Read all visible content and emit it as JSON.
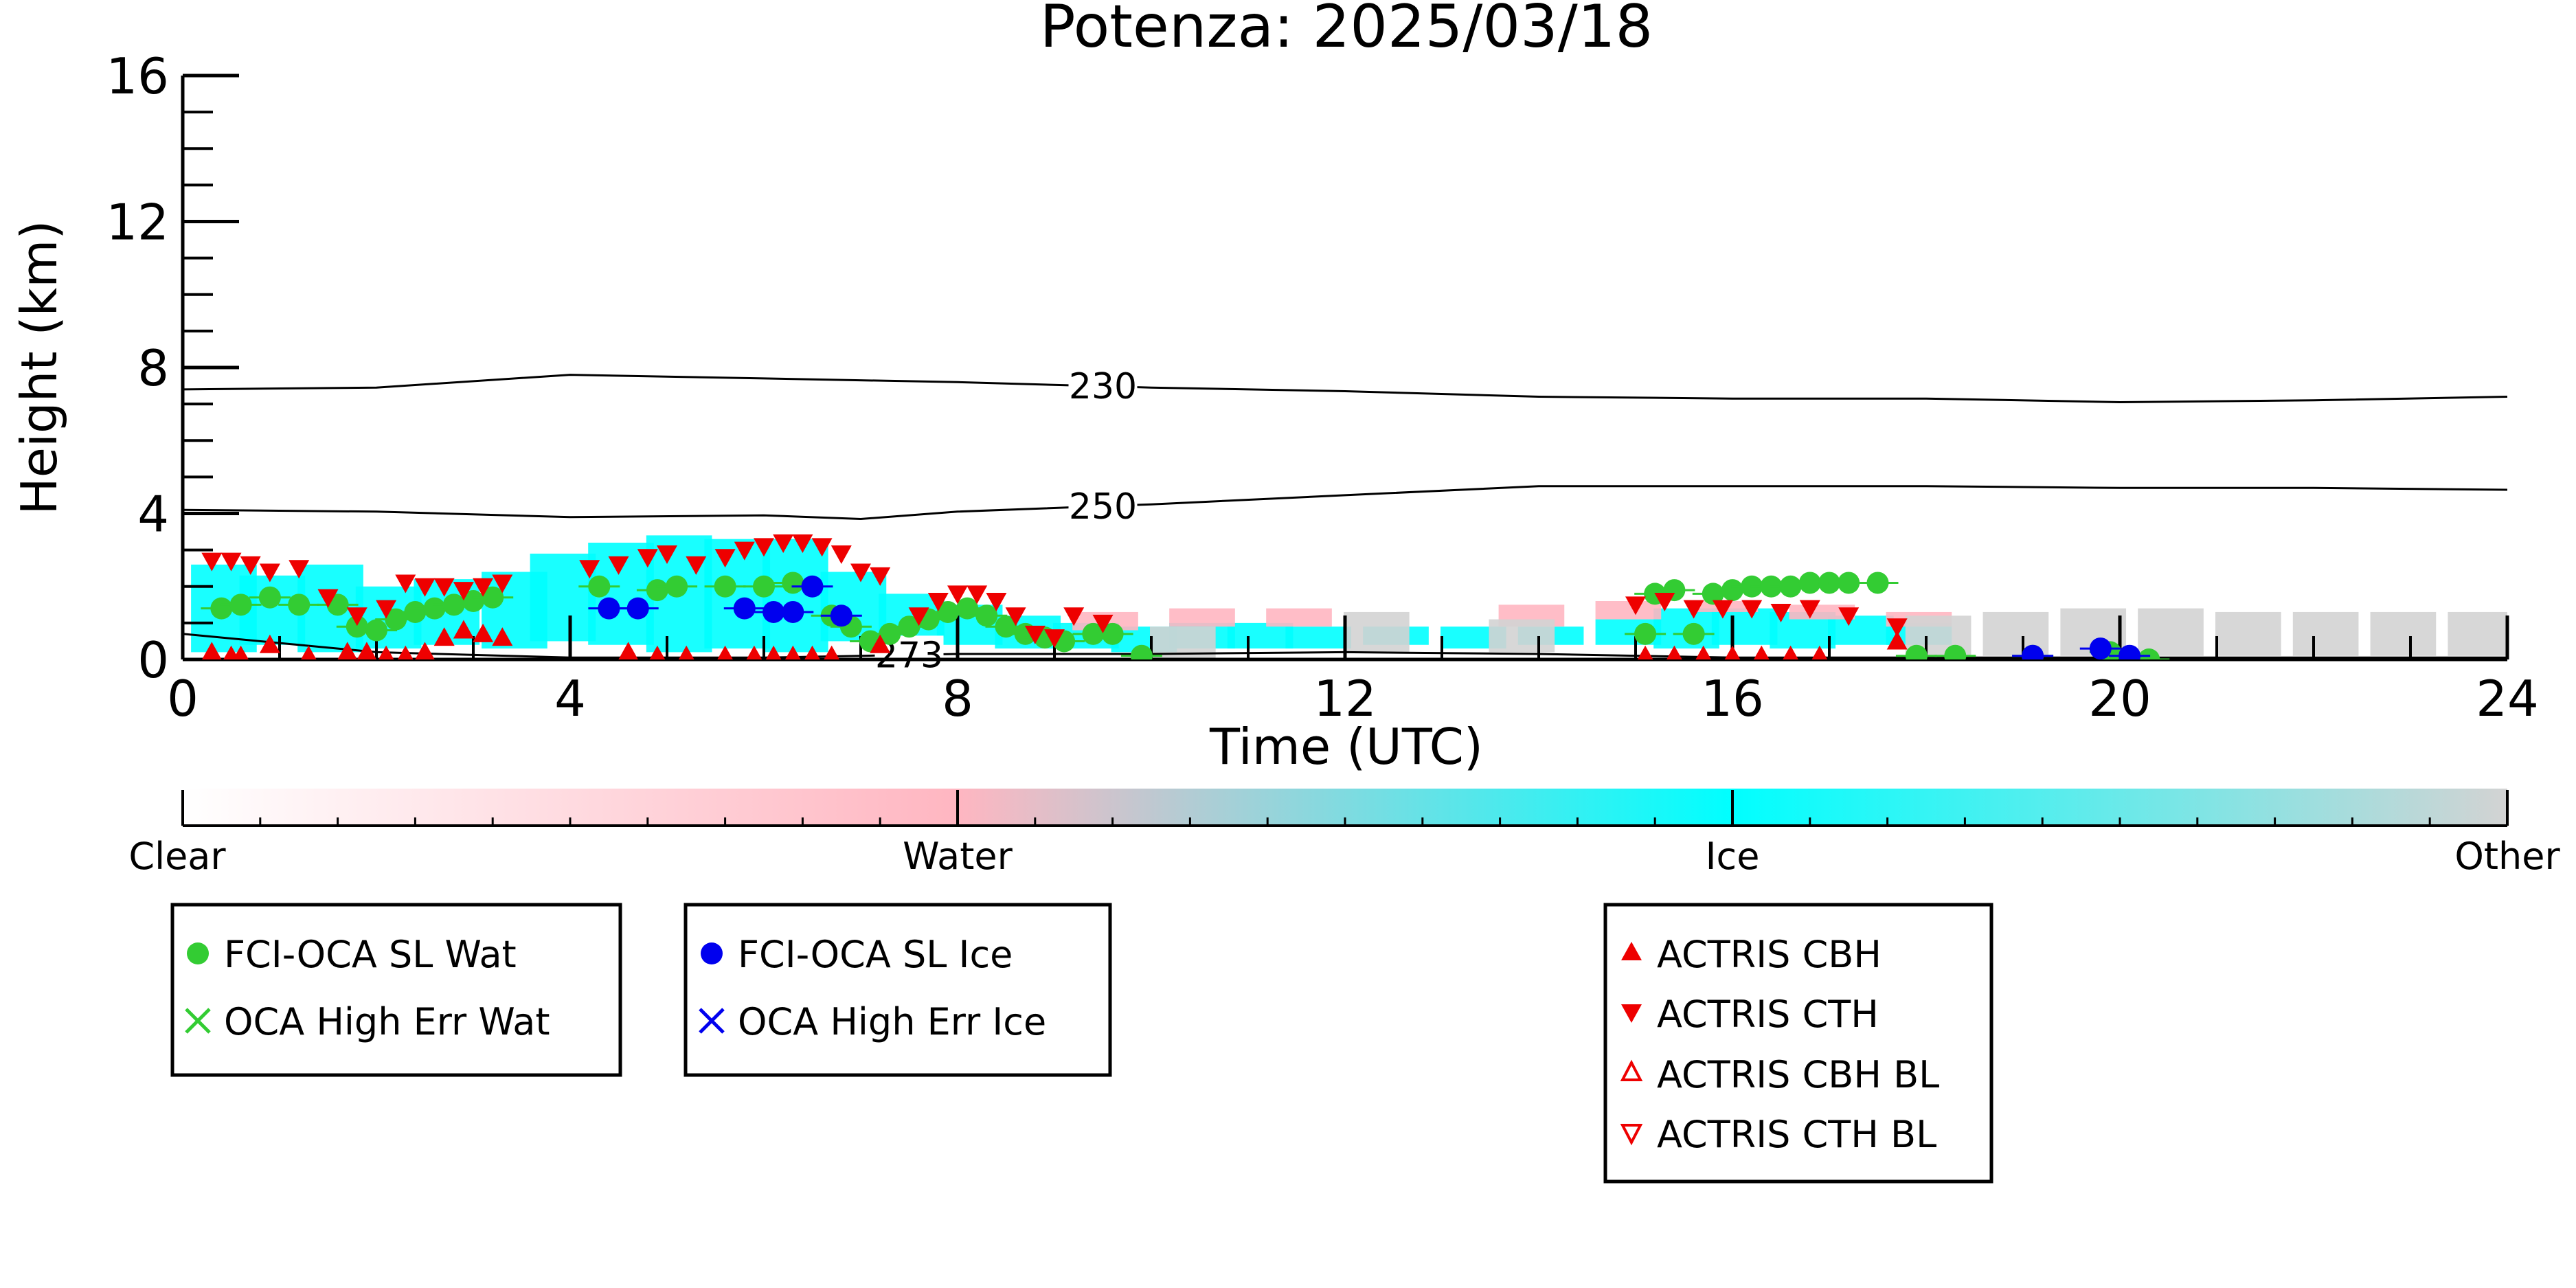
{
  "chart_data": {
    "type": "scatter",
    "title": "Potenza: 2025/03/18",
    "xlabel": "Time (UTC)",
    "ylabel": "Height (km)",
    "xlim": [
      0,
      24
    ],
    "ylim": [
      0,
      16
    ],
    "x_ticks": [
      "0",
      "4",
      "8",
      "12",
      "16",
      "20",
      "24"
    ],
    "y_ticks": [
      "0",
      "4",
      "8",
      "12",
      "16"
    ],
    "grid": false,
    "colors": {
      "water_point": "#33cc33",
      "ice_point": "#0000ee",
      "actris": "#ee0000",
      "curtain_water": "#ffb6c1",
      "curtain_ice": "#00ffff",
      "curtain_other": "#d3d3d3",
      "contour": "#000000"
    },
    "colorbar": {
      "labels": [
        "Clear",
        "Water",
        "Ice",
        "Other"
      ],
      "colors": [
        "#ffffff",
        "#ffb6c1",
        "#00ffff",
        "#d3d3d3"
      ]
    },
    "contours": [
      {
        "label": "230",
        "label_x": 9.5,
        "points": [
          [
            0,
            7.4
          ],
          [
            2,
            7.45
          ],
          [
            4,
            7.8
          ],
          [
            6,
            7.7
          ],
          [
            8,
            7.6
          ],
          [
            10,
            7.45
          ],
          [
            12,
            7.35
          ],
          [
            14,
            7.2
          ],
          [
            16,
            7.15
          ],
          [
            18,
            7.15
          ],
          [
            20,
            7.05
          ],
          [
            22,
            7.1
          ],
          [
            24,
            7.2
          ]
        ]
      },
      {
        "label": "250",
        "label_x": 9.5,
        "points": [
          [
            0,
            4.1
          ],
          [
            2,
            4.05
          ],
          [
            4,
            3.9
          ],
          [
            6,
            3.95
          ],
          [
            7,
            3.85
          ],
          [
            8,
            4.05
          ],
          [
            10,
            4.25
          ],
          [
            12,
            4.5
          ],
          [
            14,
            4.75
          ],
          [
            16,
            4.75
          ],
          [
            18,
            4.75
          ],
          [
            20,
            4.7
          ],
          [
            22,
            4.7
          ],
          [
            24,
            4.65
          ]
        ]
      },
      {
        "label": "273",
        "label_x": 7.5,
        "points": [
          [
            0,
            0.7
          ],
          [
            1,
            0.45
          ],
          [
            2,
            0.2
          ],
          [
            4,
            0.05
          ],
          [
            6,
            0.05
          ],
          [
            7,
            0.1
          ],
          [
            8,
            0.15
          ],
          [
            10,
            0.15
          ],
          [
            12,
            0.2
          ],
          [
            14,
            0.15
          ],
          [
            16,
            0.05
          ],
          [
            18,
            0.05
          ],
          [
            20,
            0.05
          ],
          [
            24,
            0.05
          ]
        ]
      }
    ],
    "curtain": [
      {
        "class": "ice",
        "segments": [
          [
            0.1,
            0.2,
            2.6
          ],
          [
            0.6,
            0.4,
            2.3
          ],
          [
            1.2,
            0.2,
            2.6
          ],
          [
            1.8,
            0.3,
            2.0
          ],
          [
            2.4,
            0.4,
            2.2
          ],
          [
            3.1,
            0.3,
            2.4
          ],
          [
            3.6,
            0.5,
            2.9
          ],
          [
            4.2,
            0.4,
            3.2
          ],
          [
            4.8,
            0.2,
            3.4
          ],
          [
            5.4,
            0.3,
            3.3
          ],
          [
            6.0,
            0.2,
            3.3
          ],
          [
            6.6,
            0.5,
            2.4
          ],
          [
            7.2,
            0.6,
            1.8
          ],
          [
            7.8,
            0.4,
            1.5
          ],
          [
            8.4,
            0.3,
            1.2
          ],
          [
            9.0,
            0.3,
            1.0
          ],
          [
            9.6,
            0.2,
            0.9
          ],
          [
            10.2,
            0.3,
            1.0
          ],
          [
            10.8,
            0.3,
            1.0
          ],
          [
            11.4,
            0.3,
            0.9
          ],
          [
            12.2,
            0.4,
            0.9
          ],
          [
            13.0,
            0.3,
            0.9
          ],
          [
            13.8,
            0.4,
            0.9
          ],
          [
            14.6,
            0.4,
            1.1
          ],
          [
            15.2,
            0.3,
            1.4
          ],
          [
            15.8,
            0.4,
            1.4
          ],
          [
            16.4,
            0.3,
            1.3
          ],
          [
            17.0,
            0.4,
            1.2
          ],
          [
            17.6,
            0.4,
            1.0
          ]
        ]
      },
      {
        "class": "water",
        "segments": [
          [
            9.2,
            0.8,
            1.3
          ],
          [
            10.2,
            0.9,
            1.4
          ],
          [
            11.2,
            0.9,
            1.4
          ],
          [
            13.6,
            0.9,
            1.5
          ],
          [
            14.6,
            1.1,
            1.6
          ],
          [
            15.6,
            1.3,
            1.6
          ],
          [
            16.6,
            1.1,
            1.5
          ],
          [
            17.6,
            0.9,
            1.3
          ]
        ]
      },
      {
        "class": "other",
        "segments": [
          [
            10.0,
            0.0,
            0.9
          ],
          [
            12.0,
            0.2,
            1.3
          ],
          [
            13.5,
            0.2,
            1.1
          ],
          [
            17.8,
            0.1,
            1.2
          ],
          [
            18.6,
            0.1,
            1.3
          ],
          [
            19.4,
            0.1,
            1.4
          ],
          [
            20.2,
            0.1,
            1.4
          ],
          [
            21.0,
            0.1,
            1.3
          ],
          [
            21.8,
            0.1,
            1.3
          ],
          [
            22.6,
            0.1,
            1.3
          ],
          [
            23.4,
            0.1,
            1.3
          ]
        ]
      }
    ],
    "series": [
      {
        "name": "FCI-OCA SL Wat",
        "marker": "circle",
        "color": "#33cc33",
        "points": [
          [
            0.4,
            1.4
          ],
          [
            0.6,
            1.5
          ],
          [
            0.9,
            1.7
          ],
          [
            1.2,
            1.5
          ],
          [
            1.6,
            1.5
          ],
          [
            1.8,
            0.9
          ],
          [
            2.0,
            0.8
          ],
          [
            2.2,
            1.1
          ],
          [
            2.4,
            1.3
          ],
          [
            2.6,
            1.4
          ],
          [
            2.8,
            1.5
          ],
          [
            3.0,
            1.6
          ],
          [
            3.2,
            1.7
          ],
          [
            4.3,
            2.0
          ],
          [
            4.9,
            1.9
          ],
          [
            5.1,
            2.0
          ],
          [
            5.6,
            2.0
          ],
          [
            6.0,
            2.0
          ],
          [
            6.3,
            2.1
          ],
          [
            6.7,
            1.2
          ],
          [
            6.9,
            0.9
          ],
          [
            7.1,
            0.5
          ],
          [
            7.3,
            0.7
          ],
          [
            7.5,
            0.9
          ],
          [
            7.7,
            1.1
          ],
          [
            7.9,
            1.3
          ],
          [
            8.1,
            1.4
          ],
          [
            8.3,
            1.2
          ],
          [
            8.5,
            0.9
          ],
          [
            8.7,
            0.7
          ],
          [
            8.9,
            0.6
          ],
          [
            9.1,
            0.5
          ],
          [
            9.4,
            0.7
          ],
          [
            9.6,
            0.7
          ],
          [
            9.9,
            0.1
          ],
          [
            15.1,
            0.7
          ],
          [
            15.2,
            1.8
          ],
          [
            15.4,
            1.9
          ],
          [
            15.6,
            0.7
          ],
          [
            15.8,
            1.8
          ],
          [
            16.0,
            1.9
          ],
          [
            16.2,
            2.0
          ],
          [
            16.4,
            2.0
          ],
          [
            16.6,
            2.0
          ],
          [
            16.8,
            2.1
          ],
          [
            17.0,
            2.1
          ],
          [
            17.2,
            2.1
          ],
          [
            17.5,
            2.1
          ],
          [
            17.9,
            0.1
          ],
          [
            18.3,
            0.1
          ],
          [
            19.1,
            0.1
          ],
          [
            19.9,
            0.2
          ],
          [
            20.3,
            0.0
          ]
        ]
      },
      {
        "name": "FCI-OCA SL Ice",
        "marker": "circle",
        "color": "#0000ee",
        "points": [
          [
            4.4,
            1.4
          ],
          [
            4.7,
            1.4
          ],
          [
            5.8,
            1.4
          ],
          [
            6.1,
            1.3
          ],
          [
            6.3,
            1.3
          ],
          [
            6.5,
            2.0
          ],
          [
            6.8,
            1.2
          ],
          [
            19.1,
            0.1
          ],
          [
            19.8,
            0.3
          ],
          [
            20.1,
            0.1
          ]
        ]
      },
      {
        "name": "ACTRIS CBH",
        "marker": "triangle-up",
        "color": "#ee0000",
        "points": [
          [
            0.3,
            0.2
          ],
          [
            0.5,
            0.1
          ],
          [
            0.6,
            0.1
          ],
          [
            0.9,
            0.4
          ],
          [
            1.3,
            0.1
          ],
          [
            1.7,
            0.2
          ],
          [
            1.9,
            0.2
          ],
          [
            2.1,
            0.1
          ],
          [
            2.3,
            0.1
          ],
          [
            2.5,
            0.2
          ],
          [
            2.7,
            0.6
          ],
          [
            2.9,
            0.8
          ],
          [
            3.1,
            0.7
          ],
          [
            3.3,
            0.6
          ],
          [
            4.6,
            0.2
          ],
          [
            4.9,
            0.1
          ],
          [
            5.2,
            0.1
          ],
          [
            5.6,
            0.1
          ],
          [
            5.9,
            0.1
          ],
          [
            6.1,
            0.1
          ],
          [
            6.3,
            0.1
          ],
          [
            6.5,
            0.1
          ],
          [
            6.7,
            0.1
          ],
          [
            7.2,
            0.4
          ],
          [
            15.1,
            0.1
          ],
          [
            15.4,
            0.1
          ],
          [
            15.7,
            0.1
          ],
          [
            16.0,
            0.1
          ],
          [
            16.3,
            0.1
          ],
          [
            16.6,
            0.1
          ],
          [
            16.9,
            0.1
          ],
          [
            17.7,
            0.5
          ]
        ]
      },
      {
        "name": "ACTRIS CTH",
        "marker": "triangle-down",
        "color": "#ee0000",
        "points": [
          [
            0.3,
            2.7
          ],
          [
            0.5,
            2.7
          ],
          [
            0.7,
            2.6
          ],
          [
            0.9,
            2.4
          ],
          [
            1.2,
            2.5
          ],
          [
            1.5,
            1.7
          ],
          [
            1.8,
            1.2
          ],
          [
            2.1,
            1.4
          ],
          [
            2.3,
            2.1
          ],
          [
            2.5,
            2.0
          ],
          [
            2.7,
            2.0
          ],
          [
            2.9,
            1.9
          ],
          [
            3.1,
            2.0
          ],
          [
            3.3,
            2.1
          ],
          [
            4.2,
            2.5
          ],
          [
            4.5,
            2.6
          ],
          [
            4.8,
            2.8
          ],
          [
            5.0,
            2.9
          ],
          [
            5.3,
            2.6
          ],
          [
            5.6,
            2.8
          ],
          [
            5.8,
            3.0
          ],
          [
            6.0,
            3.1
          ],
          [
            6.2,
            3.2
          ],
          [
            6.4,
            3.2
          ],
          [
            6.6,
            3.1
          ],
          [
            6.8,
            2.9
          ],
          [
            7.0,
            2.4
          ],
          [
            7.2,
            2.3
          ],
          [
            7.6,
            1.2
          ],
          [
            7.8,
            1.6
          ],
          [
            8.0,
            1.8
          ],
          [
            8.2,
            1.8
          ],
          [
            8.4,
            1.6
          ],
          [
            8.6,
            1.2
          ],
          [
            8.8,
            0.7
          ],
          [
            9.0,
            0.6
          ],
          [
            9.2,
            1.2
          ],
          [
            9.5,
            1.0
          ],
          [
            15.0,
            1.5
          ],
          [
            15.3,
            1.6
          ],
          [
            15.6,
            1.4
          ],
          [
            15.9,
            1.4
          ],
          [
            16.2,
            1.4
          ],
          [
            16.5,
            1.3
          ],
          [
            16.8,
            1.4
          ],
          [
            17.2,
            1.2
          ],
          [
            17.7,
            0.9
          ]
        ]
      }
    ],
    "legend_groups": [
      {
        "entries": [
          {
            "label": "FCI-OCA SL Wat",
            "marker": "circle",
            "color": "#33cc33"
          },
          {
            "label": "OCA High Err Wat",
            "marker": "x",
            "color": "#33cc33"
          }
        ]
      },
      {
        "entries": [
          {
            "label": "FCI-OCA SL Ice",
            "marker": "circle",
            "color": "#0000ee"
          },
          {
            "label": "OCA High Err Ice",
            "marker": "x",
            "color": "#0000ee"
          }
        ]
      },
      {
        "entries": [
          {
            "label": "ACTRIS CBH",
            "marker": "triangle-up",
            "color": "#ee0000"
          },
          {
            "label": "ACTRIS CTH",
            "marker": "triangle-down",
            "color": "#ee0000"
          },
          {
            "label": "ACTRIS CBH BL",
            "marker": "triangle-up-open",
            "color": "#ee0000"
          },
          {
            "label": "ACTRIS CTH BL",
            "marker": "triangle-down-open",
            "color": "#ee0000"
          }
        ]
      }
    ]
  }
}
